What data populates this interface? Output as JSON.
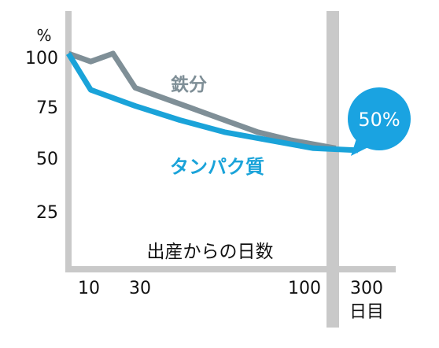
{
  "chart_data": {
    "type": "line",
    "title": "",
    "xlabel": "出産からの日数",
    "xunit": "日目",
    "ylabel": "%",
    "ylim": [
      0,
      100
    ],
    "y_ticks": [
      "100",
      "75",
      "50",
      "25"
    ],
    "x_ticks": [
      "10",
      "30",
      "100",
      "300"
    ],
    "grid": false,
    "axis_break": "between 100 and 300",
    "series": [
      {
        "name": "鉄分",
        "color": "#7f8f97",
        "points": [
          [
            0,
            100
          ],
          [
            10,
            96
          ],
          [
            20,
            100
          ],
          [
            30,
            83
          ],
          [
            40,
            79
          ],
          [
            55,
            73
          ],
          [
            70,
            67
          ],
          [
            85,
            61
          ],
          [
            100,
            57
          ],
          [
            120,
            53
          ]
        ]
      },
      {
        "name": "タンパク質",
        "color": "#1aa3d9",
        "points": [
          [
            0,
            100
          ],
          [
            10,
            82
          ],
          [
            30,
            74
          ],
          [
            50,
            67
          ],
          [
            70,
            61
          ],
          [
            90,
            57
          ],
          [
            110,
            53
          ],
          [
            130,
            52
          ]
        ]
      }
    ],
    "annotation": {
      "text": "50%",
      "color": "#1aa3e1"
    }
  }
}
